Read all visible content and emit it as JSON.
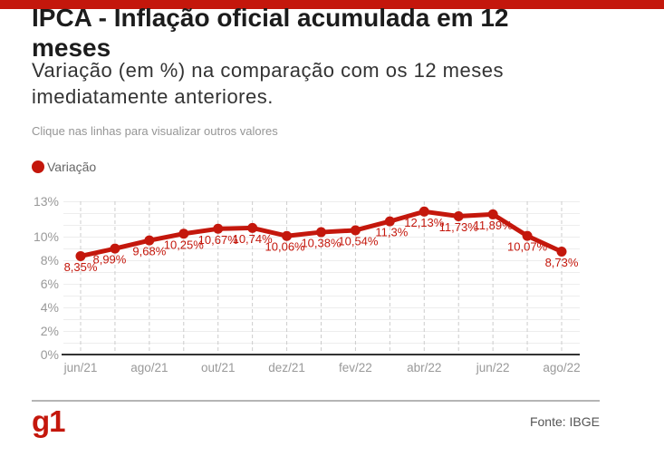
{
  "accent_color": "#c4170c",
  "header": {
    "title": "IPCA - Inflação oficial acumulada em 12 meses",
    "subtitle": "Variação (em %) na comparação com os 12 meses imediatamente anteriores.",
    "note": "Clique nas linhas para visualizar outros valores"
  },
  "legend": {
    "label": "Variação",
    "marker_color": "#c4170c"
  },
  "chart_data": {
    "type": "line",
    "title": "IPCA - Inflação oficial acumulada em 12 meses",
    "categories": [
      "jun/21",
      "jul/21",
      "ago/21",
      "set/21",
      "out/21",
      "nov/21",
      "dez/21",
      "jan/22",
      "fev/22",
      "mar/22",
      "abr/22",
      "mai/22",
      "jun/22",
      "jul/22",
      "ago/22"
    ],
    "x_tick_labels": [
      "jun/21",
      "ago/21",
      "out/21",
      "dez/21",
      "fev/22",
      "abr/22",
      "jun/22",
      "ago/22"
    ],
    "series": [
      {
        "name": "Variação",
        "color": "#c4170c",
        "values": [
          8.35,
          8.99,
          9.68,
          10.25,
          10.67,
          10.74,
          10.06,
          10.38,
          10.54,
          11.3,
          12.13,
          11.73,
          11.89,
          10.07,
          8.73
        ],
        "labels": [
          "8,35%",
          "8,99%",
          "9,68%",
          "10,25%",
          "10,67%",
          "10,74%",
          "10,06%",
          "10,38%",
          "10,54%",
          "11,3%",
          "12,13%",
          "11,73%",
          "11,89%",
          "10,07%",
          "8,73%"
        ]
      }
    ],
    "y_ticks": [
      0,
      2,
      4,
      6,
      8,
      10,
      13
    ],
    "ylim": [
      0,
      13
    ],
    "grid": {
      "horizontal": true,
      "horizontal_step": 1,
      "vertical": "dashed-per-category"
    },
    "legend_position": "top-left"
  },
  "footer": {
    "logo": "g1",
    "source": "Fonte: IBGE"
  }
}
